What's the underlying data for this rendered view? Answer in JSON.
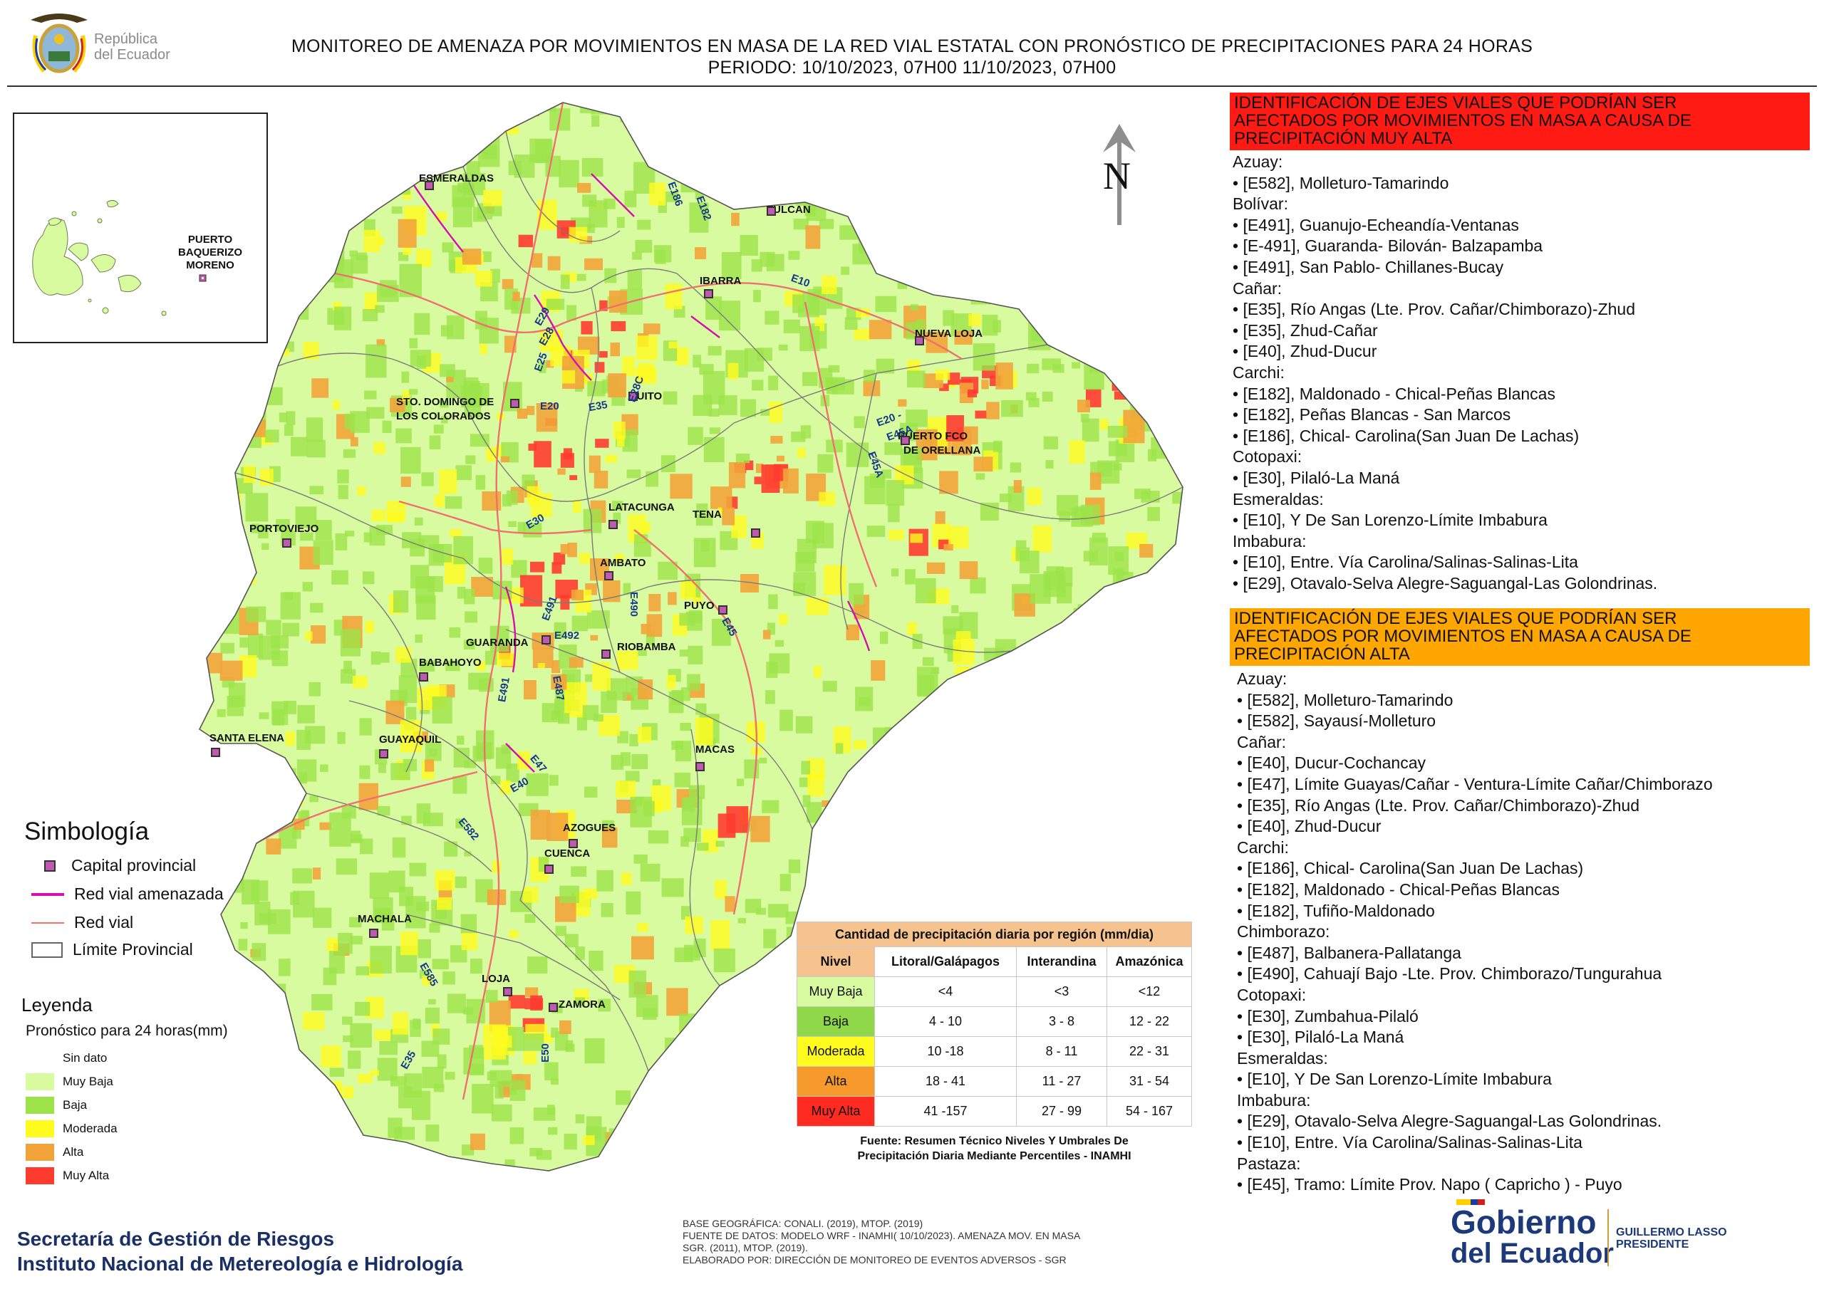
{
  "header": {
    "title_line1": "MONITOREO DE AMENAZA POR MOVIMIENTOS EN MASA DE LA RED VIAL  ESTATAL  CON PRONÓSTICO  DE  PRECIPITACIONES PARA 24 HORAS",
    "title_line2": "PERIODO: 10/10/2023, 07H00 11/10/2023, 07H00",
    "logo_line1": "República",
    "logo_line2": "del Ecuador"
  },
  "north_arrow": {
    "label": "N"
  },
  "inset": {
    "city": [
      "PUERTO",
      "BAQUERIZO",
      "MORENO"
    ]
  },
  "map": {
    "cities": [
      "ESMERALDAS",
      "TULCAN",
      "IBARRA",
      "NUEVA LOJA",
      "STO. DOMINGO DE",
      "LOS COLORADOS",
      "QUITO",
      "PUERTO FCO",
      "DE ORELLANA",
      "PORTOVIEJO",
      "LATACUNGA",
      "TENA",
      "AMBATO",
      "PUYO",
      "GUARANDA",
      "RIOBAMBA",
      "BABAHOYO",
      "SANTA ELENA",
      "GUAYAQUIL",
      "MACAS",
      "AZOGUES",
      "CUENCA",
      "MACHALA",
      "LOJA",
      "ZAMORA"
    ],
    "roads": [
      "E10",
      "E186",
      "E182",
      "E29",
      "E28",
      "E25",
      "E28C",
      "E20",
      "E35",
      "E20 -",
      "E45A",
      "E45A",
      "E30",
      "E490",
      "E491",
      "E492",
      "E45",
      "E491",
      "E487",
      "E47",
      "E40",
      "E582",
      "E585",
      "E35",
      "E50"
    ]
  },
  "symbology": {
    "title": "Simbología",
    "items": [
      {
        "label": "Capital provincial"
      },
      {
        "label": "Red vial amenazada"
      },
      {
        "label": "Red vial"
      },
      {
        "label": "Límite Provincial"
      }
    ]
  },
  "legend": {
    "title": "Leyenda",
    "subtitle": "Pronóstico para 24 horas(mm)",
    "items": [
      {
        "label": "Sin dato",
        "color": "#ffffff"
      },
      {
        "label": "Muy Baja",
        "color": "#d9fba0"
      },
      {
        "label": "Baja",
        "color": "#9ce34a"
      },
      {
        "label": "Moderada",
        "color": "#fffb1e"
      },
      {
        "label": "Alta",
        "color": "#f2a43a"
      },
      {
        "label": "Muy Alta",
        "color": "#ff3b30"
      }
    ]
  },
  "precip_table": {
    "title": "Cantidad de precipitación diaria por región (mm/dia)",
    "headers": [
      "Nivel",
      "Litoral/Galápagos",
      "Interandina",
      "Amazónica"
    ],
    "rows": [
      {
        "nivel": "Muy Baja",
        "color": "#d9fba0",
        "lit": "<4",
        "int": "<3",
        "ama": "<12"
      },
      {
        "nivel": "Baja",
        "color": "#8fd84a",
        "lit": "4 - 10",
        "int": "3 - 8",
        "ama": "12 - 22"
      },
      {
        "nivel": "Moderada",
        "color": "#fffb1e",
        "lit": "10 -18",
        "int": "8 - 11",
        "ama": "22 - 31"
      },
      {
        "nivel": "Alta",
        "color": "#f79a2c",
        "lit": "18 - 41",
        "int": "11 - 27",
        "ama": "31 - 54"
      },
      {
        "nivel": "Muy Alta",
        "color": "#ff2a20",
        "lit": "41 -157",
        "int": "27 - 99",
        "ama": "54 - 167"
      }
    ],
    "source_line1": "Fuente: Resumen Técnico Niveles Y Umbrales De",
    "source_line2": "Precipitación Diaria Mediante Percentiles - INAMHI"
  },
  "panel_red": {
    "header": [
      "IDENTIFICACIÓN DE EJES VIALES QUE PODRÍAN SER",
      "AFECTADOS POR MOVIMIENTOS EN MASA A CAUSA DE",
      "PRECIPITACIÓN MUY ALTA"
    ],
    "lines": [
      "Azuay:",
      "• [E582], Molleturo-Tamarindo",
      "Bolívar:",
      "• [E491], Guanujo-Echeandía-Ventanas",
      "• [E-491], Guaranda- Bilován- Balzapamba",
      "• [E491], San Pablo- Chillanes-Bucay",
      "Cañar:",
      "• [E35], Río Angas (Lte. Prov. Cañar/Chimborazo)-Zhud",
      "• [E35], Zhud-Cañar",
      "• [E40], Zhud-Ducur",
      "Carchi:",
      "• [E182], Maldonado - Chical-Peñas Blancas",
      "• [E182], Peñas Blancas - San Marcos",
      "• [E186], Chical- Carolina(San Juan De Lachas)",
      "Cotopaxi:",
      "• [E30], Pilaló-La Maná",
      "Esmeraldas:",
      "• [E10], Y De San Lorenzo-Límite Imbabura",
      "Imbabura:",
      "• [E10], Entre. Vía Carolina/Salinas-Salinas-Lita",
      "• [E29], Otavalo-Selva Alegre-Saguangal-Las Golondrinas."
    ]
  },
  "panel_orange": {
    "header": [
      "IDENTIFICACIÓN DE EJES VIALES QUE PODRÍAN SER",
      "AFECTADOS POR MOVIMIENTOS EN MASA A CAUSA DE",
      "PRECIPITACIÓN  ALTA"
    ],
    "lines": [
      "Azuay:",
      "• [E582], Molleturo-Tamarindo",
      "• [E582], Sayausí-Molleturo",
      "Cañar:",
      "• [E40], Ducur-Cochancay",
      "• [E47], Límite Guayas/Cañar - Ventura-Límite Cañar/Chimborazo",
      "• [E35], Río Angas (Lte. Prov. Cañar/Chimborazo)-Zhud",
      "• [E40], Zhud-Ducur",
      "Carchi:",
      "• [E186], Chical- Carolina(San Juan De Lachas)",
      "• [E182], Maldonado - Chical-Peñas Blancas",
      "• [E182], Tufiño-Maldonado",
      "Chimborazo:",
      "• [E487], Balbanera-Pallatanga",
      "• [E490], Cahuají Bajo -Lte. Prov. Chimborazo/Tungurahua",
      "Cotopaxi:",
      "• [E30], Zumbahua-Pilaló",
      "• [E30], Pilaló-La Maná",
      "Esmeraldas:",
      "• [E10], Y De San Lorenzo-Límite Imbabura",
      "Imbabura:",
      "• [E29], Otavalo-Selva Alegre-Saguangal-Las Golondrinas.",
      "• [E10], Entre. Vía Carolina/Salinas-Salinas-Lita",
      "Pastaza:",
      "• [E45], Tramo: Límite Prov. Napo ( Capricho ) - Puyo"
    ]
  },
  "footer": {
    "credits": [
      "BASE GEOGRÁFICA: CONALI. (2019), MTOP. (2019)",
      "FUENTE DE DATOS: MODELO WRF - INAMHI( 10/10/2023).  AMENAZA MOV. EN MASA",
      "SGR. (2011), MTOP. (2019).",
      "ELABORADO POR: DIRECCIÓN DE MONITOREO DE EVENTOS ADVERSOS - SGR"
    ],
    "agency1": "Secretaría de Gestión de Riesgos",
    "agency2": "Instituto Nacional de Metereología e Hidrología",
    "gob1": "Gobierno",
    "gob2": "del Ecuador",
    "pres1": "GUILLERMO LASSO",
    "pres2": "PRESIDENTE"
  }
}
